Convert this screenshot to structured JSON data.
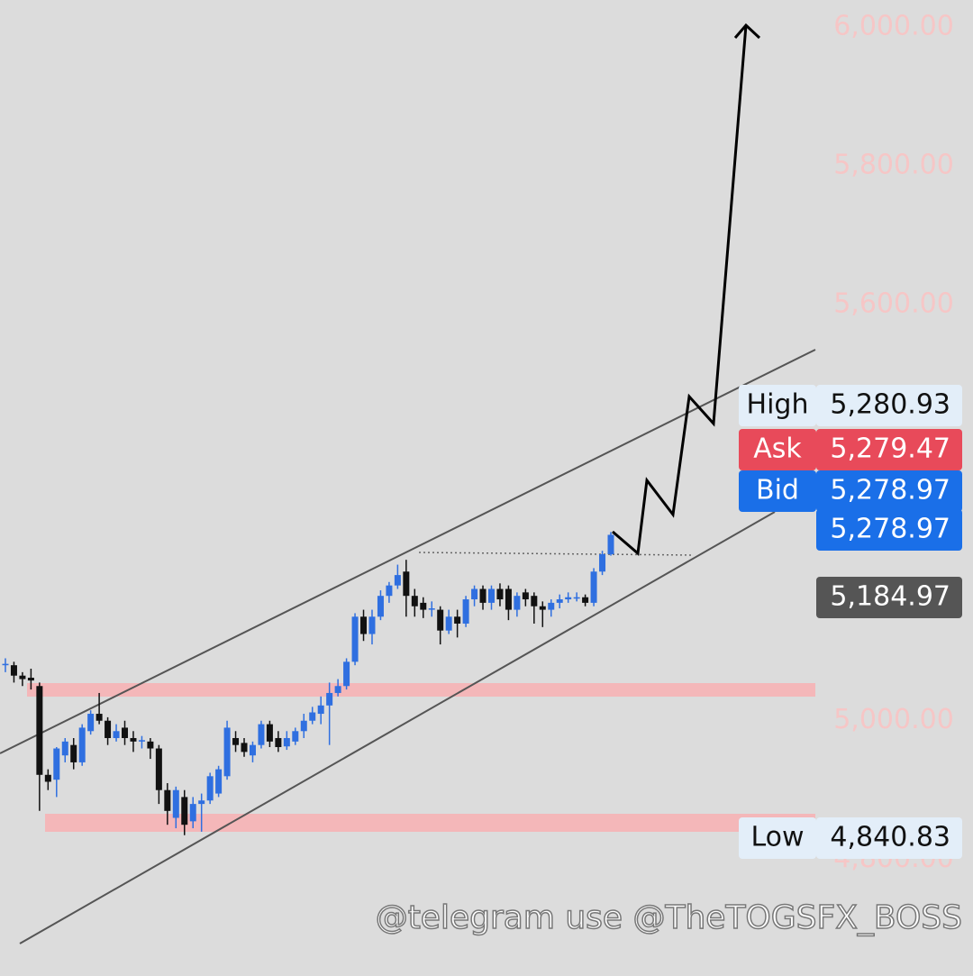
{
  "chart_data": {
    "type": "candlestick",
    "up_color": "#2f6fe0",
    "down_color": "#111111",
    "ylim": [
      4632,
      6039
    ],
    "yticks": [
      {
        "value": 6000,
        "label": "6,000.00"
      },
      {
        "value": 5800,
        "label": "5,800.00"
      },
      {
        "value": 5600,
        "label": "5,600.00"
      },
      {
        "value": 5000,
        "label": "5,000.00"
      },
      {
        "value": 4800,
        "label": "4,800.00"
      }
    ],
    "open": [
      5080,
      5080,
      5065,
      5062,
      5050,
      4922,
      4915,
      4950,
      4965,
      4940,
      4985,
      5010,
      5000,
      4975,
      4990,
      4975,
      4970,
      4970,
      4960,
      4900,
      4860,
      4890,
      4855,
      4880,
      4885,
      4895,
      4920,
      4975,
      4968,
      4950,
      4965,
      4995,
      4975,
      4963,
      4970,
      4985,
      5000,
      5010,
      5022,
      5040,
      5050,
      5085,
      5150,
      5125,
      5150,
      5180,
      5195,
      5215,
      5180,
      5170,
      5160,
      5160,
      5130,
      5150,
      5140,
      5175,
      5190,
      5170,
      5190,
      5190,
      5160,
      5185,
      5180,
      5165,
      5160,
      5170,
      5175,
      5178,
      5178,
      5170,
      5215,
      5240
    ],
    "high": [
      5090,
      5085,
      5070,
      5075,
      5055,
      4930,
      4962,
      4975,
      4975,
      4995,
      5015,
      5040,
      5005,
      4995,
      5000,
      4985,
      4978,
      4975,
      4965,
      4910,
      4905,
      4900,
      4890,
      4895,
      4925,
      4935,
      5000,
      4985,
      4975,
      4970,
      5000,
      5000,
      4985,
      4985,
      4990,
      5010,
      5020,
      5035,
      5055,
      5060,
      5090,
      5155,
      5160,
      5160,
      5188,
      5200,
      5225,
      5232,
      5190,
      5178,
      5172,
      5165,
      5160,
      5160,
      5180,
      5195,
      5195,
      5195,
      5198,
      5195,
      5185,
      5190,
      5185,
      5172,
      5175,
      5182,
      5185,
      5185,
      5182,
      5220,
      5245,
      5272
    ],
    "low": [
      5070,
      5055,
      5050,
      5045,
      4870,
      4900,
      4890,
      4940,
      4930,
      4935,
      4980,
      4995,
      4965,
      4970,
      4965,
      4955,
      4960,
      4945,
      4880,
      4850,
      4845,
      4835,
      4845,
      4840,
      4880,
      4890,
      4915,
      4955,
      4948,
      4940,
      4960,
      4962,
      4955,
      4958,
      4965,
      4975,
      4995,
      4995,
      4965,
      5035,
      5045,
      5080,
      5115,
      5110,
      5145,
      5170,
      5190,
      5150,
      5150,
      5148,
      5150,
      5110,
      5125,
      5120,
      5135,
      5165,
      5160,
      5160,
      5165,
      5145,
      5150,
      5165,
      5140,
      5135,
      5150,
      5162,
      5170,
      5172,
      5165,
      5165,
      5210,
      5238
    ],
    "close": [
      5082,
      5065,
      5060,
      5058,
      4922,
      4912,
      4960,
      4970,
      4940,
      4990,
      5010,
      5000,
      4975,
      4985,
      4975,
      4970,
      4972,
      4960,
      4900,
      4870,
      4900,
      4850,
      4880,
      4885,
      4920,
      4930,
      4990,
      4965,
      4955,
      4965,
      4995,
      4970,
      4962,
      4975,
      4985,
      5000,
      5012,
      5022,
      5040,
      5050,
      5085,
      5150,
      5125,
      5150,
      5180,
      5195,
      5210,
      5180,
      5165,
      5160,
      5162,
      5130,
      5150,
      5140,
      5175,
      5190,
      5170,
      5190,
      5175,
      5160,
      5180,
      5175,
      5165,
      5160,
      5170,
      5175,
      5178,
      5178,
      5170,
      5215,
      5240,
      5268
    ],
    "price_labels": [
      {
        "name": "High",
        "value": 5280.93,
        "label": "5,280.93"
      },
      {
        "name": "Ask",
        "value": 5279.47,
        "label": "5,279.47"
      },
      {
        "name": "Bid",
        "value": 5278.97,
        "label": "5,278.97"
      },
      {
        "value": 5278.97,
        "label": "5,278.97"
      },
      {
        "value": 5184.97,
        "label": "5,184.97"
      },
      {
        "name": "Low",
        "value": 4840.83,
        "label": "4,840.83"
      }
    ],
    "watermark": "@telegram use @TheTOGSFX_BOSS"
  }
}
